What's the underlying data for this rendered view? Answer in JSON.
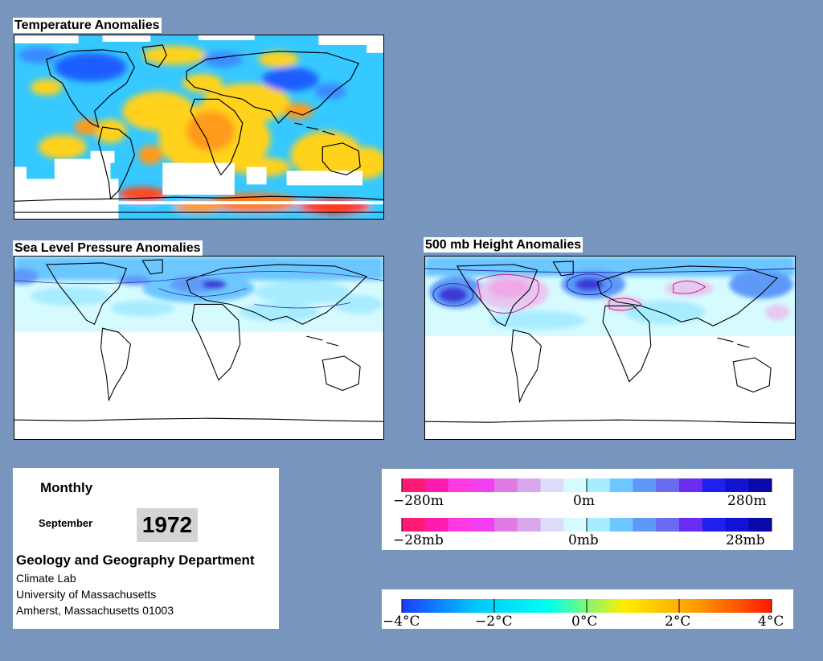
{
  "panels": {
    "temperature": {
      "title": "Temperature Anomalies"
    },
    "slp": {
      "title": "Sea Level Pressure Anomalies"
    },
    "height500": {
      "title": "500 mb Height Anomalies"
    }
  },
  "info": {
    "period": "Monthly",
    "month": "September",
    "year": "1972",
    "department": "Geology and Geography Department",
    "lines": [
      "Climate Lab",
      "University of Massachusetts",
      "Amherst, Massachusetts 01003"
    ]
  },
  "legends": {
    "height": {
      "labels": [
        "−280m",
        "0m",
        "280m"
      ],
      "colors": [
        "#ff1a75",
        "#ff1ab0",
        "#ff3ae0",
        "#f23ff2",
        "#e07be6",
        "#d9a8ec",
        "#dcdcf8",
        "#d6fbff",
        "#a8ecff",
        "#6cc6ff",
        "#5e99f8",
        "#6b6bf2",
        "#6a2cf0",
        "#2020ee",
        "#1212d4",
        "#0a0aaa"
      ]
    },
    "pressure": {
      "labels": [
        "−28mb",
        "0mb",
        "28mb"
      ],
      "colors": [
        "#ff1a75",
        "#ff1ab0",
        "#ff3ae0",
        "#f23ff2",
        "#e07be6",
        "#d9a8ec",
        "#dcdcf8",
        "#d6fbff",
        "#a8ecff",
        "#6cc6ff",
        "#5e99f8",
        "#6b6bf2",
        "#6a2cf0",
        "#2020ee",
        "#1212d4",
        "#0a0aaa"
      ]
    },
    "temperature": {
      "labels": [
        "−4°C",
        "−2°C",
        "0°C",
        "2°C",
        "4°C"
      ],
      "colors": [
        "#1a3cff",
        "#00c8ff",
        "#00ffee",
        "#ffee00",
        "#ff9900",
        "#ff1a00"
      ]
    }
  }
}
